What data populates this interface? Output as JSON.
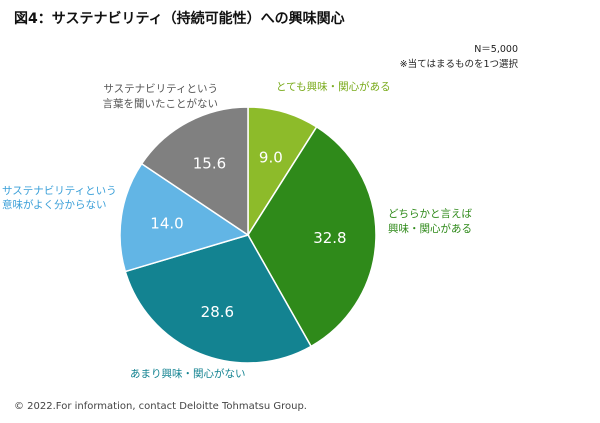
{
  "title": "図4：サステナビリティ（持続可能性）への興味関心",
  "notes": {
    "sample_size": "N＝5,000",
    "instruction": "※当てはまるものを1つ選択"
  },
  "chart_data": {
    "type": "pie",
    "title": "図4：サステナビリティ（持続可能性）への興味関心",
    "unit": "%",
    "start": "12 o'clock, clockwise",
    "slices": [
      {
        "name": "とても興味・関心がある",
        "label_lines": [
          "とても興味・関心がある"
        ],
        "value": 9.0,
        "value_label": "9.0",
        "color": "#8dbb2a",
        "label_color": "#7aab1c"
      },
      {
        "name": "どちらかと言えば興味・関心がある",
        "label_lines": [
          "どちらかと言えば",
          "興味・関心がある"
        ],
        "value": 32.8,
        "value_label": "32.8",
        "color": "#2f8a1a",
        "label_color": "#2f8a1a"
      },
      {
        "name": "あまり興味・関心がない",
        "label_lines": [
          "あまり興味・関心がない"
        ],
        "value": 28.6,
        "value_label": "28.6",
        "color": "#138391",
        "label_color": "#138391"
      },
      {
        "name": "サステナビリティという意味がよく分からない",
        "label_lines": [
          "サステナビリティという",
          "意味がよく分からない"
        ],
        "value": 14.0,
        "value_label": "14.0",
        "color": "#62b5e5",
        "label_color": "#3a9fd8"
      },
      {
        "name": "サステナビリティという言葉を聞いたことがない",
        "label_lines": [
          "サステナビリティという",
          "言葉を聞いたことがない"
        ],
        "value": 15.6,
        "value_label": "15.6",
        "color": "#808080",
        "label_color": "#555555"
      }
    ]
  },
  "footer": "© 2022.For information, contact Deloitte Tohmatsu Group."
}
